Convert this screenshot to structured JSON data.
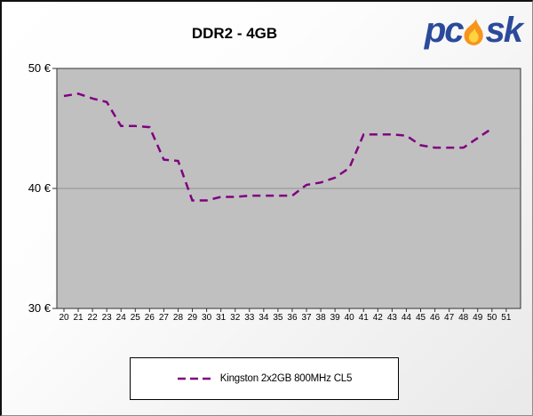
{
  "header": {
    "title": "DDR2 - 4GB",
    "logo": {
      "text_left": "pc",
      "text_right": "sk",
      "text_color": "#2b4a9b",
      "flame_outer_color": "#f7941e",
      "flame_inner_color": "#ffd33d"
    }
  },
  "chart_data": {
    "type": "line",
    "title": "DDR2 - 4GB",
    "x": [
      20,
      21,
      22,
      23,
      24,
      25,
      26,
      27,
      28,
      29,
      30,
      31,
      32,
      33,
      34,
      35,
      36,
      37,
      38,
      39,
      40,
      41,
      42,
      43,
      44,
      45,
      46,
      47,
      48,
      49,
      50
    ],
    "series": [
      {
        "name": "Kingston 2x2GB 800MHz CL5",
        "color": "#800080",
        "line_style": "dashed",
        "values": [
          47.7,
          47.9,
          47.5,
          47.2,
          45.2,
          45.2,
          45.1,
          42.4,
          42.3,
          39.0,
          39.0,
          39.3,
          39.3,
          39.4,
          39.4,
          39.4,
          39.4,
          40.3,
          40.5,
          40.9,
          41.7,
          44.5,
          44.5,
          44.5,
          44.4,
          43.6,
          43.4,
          43.4,
          43.4,
          44.2,
          45.0
        ]
      }
    ],
    "xlabel": "",
    "ylabel": "",
    "x_ticks": [
      20,
      21,
      22,
      23,
      24,
      25,
      26,
      27,
      28,
      29,
      30,
      31,
      32,
      33,
      34,
      35,
      36,
      37,
      38,
      39,
      40,
      41,
      42,
      43,
      44,
      45,
      46,
      47,
      48,
      49,
      50,
      51
    ],
    "y_ticks": [
      {
        "value": 50,
        "label": "50 €"
      },
      {
        "value": 40,
        "label": "40 €"
      },
      {
        "value": 30,
        "label": "30 €"
      }
    ],
    "ylim": [
      30,
      50
    ],
    "xlim": [
      20,
      51
    ],
    "gridlines_y": [
      40
    ],
    "grid_color": "#8f8f8f",
    "plot_background": "#c0c0c0",
    "plot_border_color": "#333333",
    "legend": {
      "position": "bottom",
      "entries": [
        "Kingston 2x2GB 800MHz CL5"
      ]
    }
  },
  "legend": {
    "label": "Kingston 2x2GB 800MHz CL5"
  }
}
